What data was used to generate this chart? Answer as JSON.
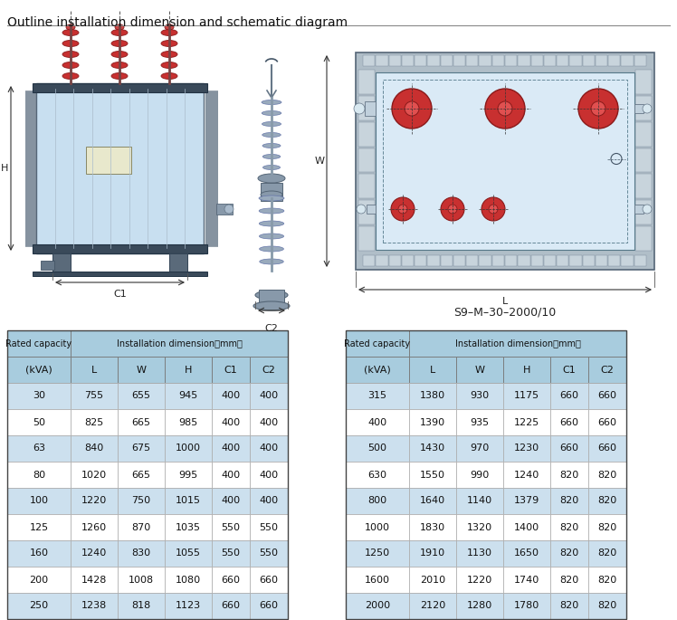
{
  "title": "Outline installation dimension and schematic diagram",
  "subtitle_diagram": "S9–M–30–2000/10",
  "table_left": {
    "rows": [
      [
        "30",
        "755",
        "655",
        "945",
        "400",
        "400"
      ],
      [
        "50",
        "825",
        "665",
        "985",
        "400",
        "400"
      ],
      [
        "63",
        "840",
        "675",
        "1000",
        "400",
        "400"
      ],
      [
        "80",
        "1020",
        "665",
        "995",
        "400",
        "400"
      ],
      [
        "100",
        "1220",
        "750",
        "1015",
        "400",
        "400"
      ],
      [
        "125",
        "1260",
        "870",
        "1035",
        "550",
        "550"
      ],
      [
        "160",
        "1240",
        "830",
        "1055",
        "550",
        "550"
      ],
      [
        "200",
        "1428",
        "1008",
        "1080",
        "660",
        "660"
      ],
      [
        "250",
        "1238",
        "818",
        "1123",
        "660",
        "660"
      ]
    ]
  },
  "table_right": {
    "rows": [
      [
        "315",
        "1380",
        "930",
        "1175",
        "660",
        "660"
      ],
      [
        "400",
        "1390",
        "935",
        "1225",
        "660",
        "660"
      ],
      [
        "500",
        "1430",
        "970",
        "1230",
        "660",
        "660"
      ],
      [
        "630",
        "1550",
        "990",
        "1240",
        "820",
        "820"
      ],
      [
        "800",
        "1640",
        "1140",
        "1379",
        "820",
        "820"
      ],
      [
        "1000",
        "1830",
        "1320",
        "1400",
        "820",
        "820"
      ],
      [
        "1250",
        "1910",
        "1130",
        "1650",
        "820",
        "820"
      ],
      [
        "1600",
        "2010",
        "1220",
        "1740",
        "820",
        "820"
      ],
      [
        "2000",
        "2120",
        "1280",
        "1780",
        "820",
        "820"
      ]
    ]
  },
  "colors": {
    "light_blue": "#c8dff0",
    "lighter_blue": "#daeaf6",
    "dark_bar": "#3a4a5a",
    "medium_bar": "#5a6a7a",
    "fin_color": "#8a9aaa",
    "red_bushing": "#c83030",
    "dark_red": "#8a1a1a",
    "label_bg": "#e8e8cc",
    "header_bg": "#a8ccde",
    "even_bg": "#cce0ee",
    "odd_bg": "#ffffff",
    "border_dark": "#444444",
    "border_light": "#999999",
    "text_color": "#111111"
  }
}
